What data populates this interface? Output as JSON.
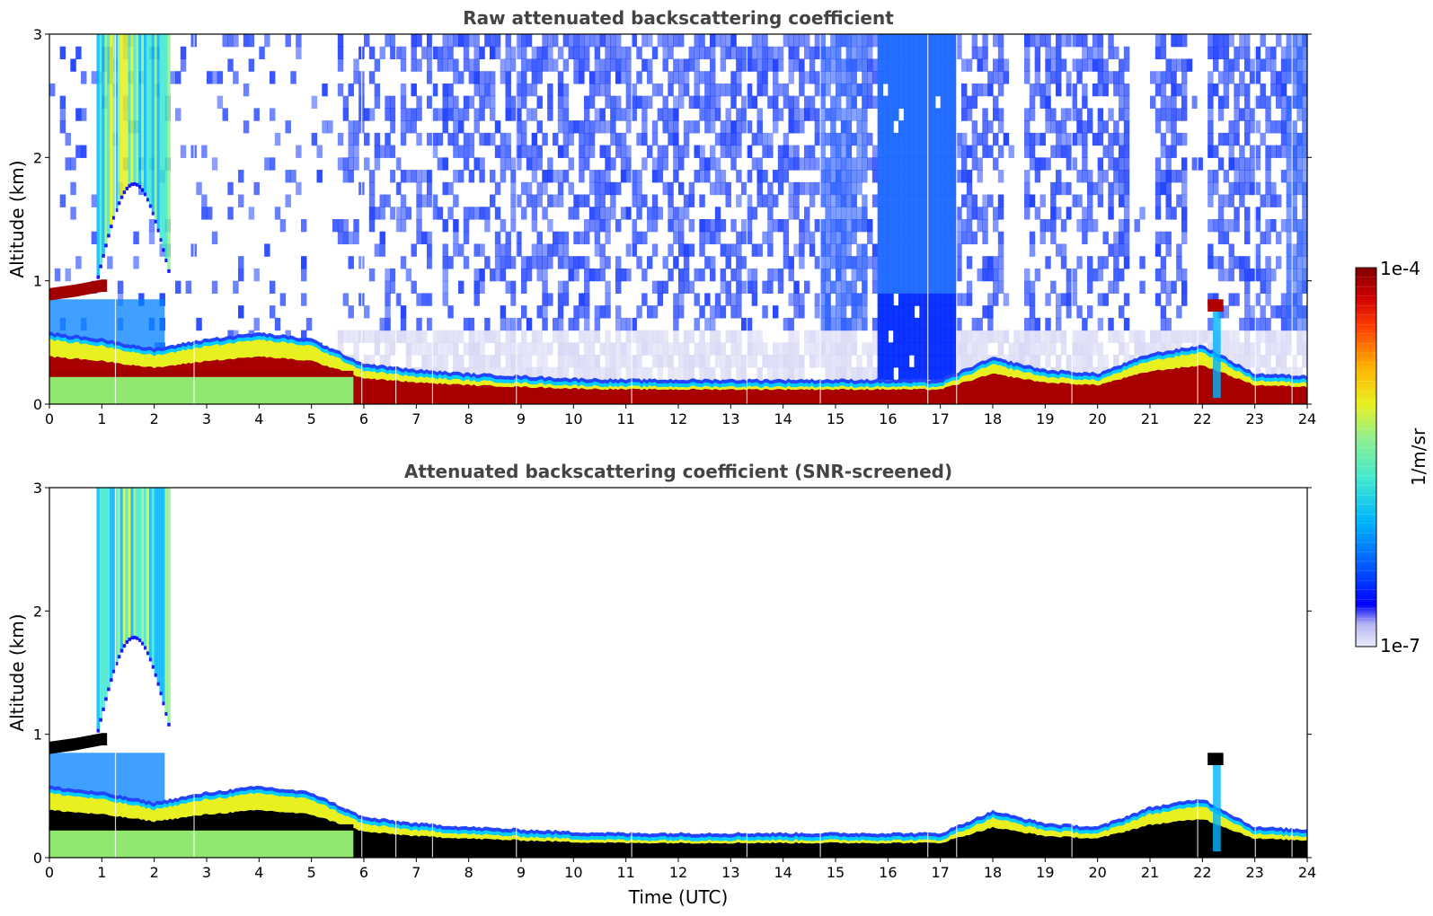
{
  "chart_data": [
    {
      "type": "heatmap",
      "title": "Raw attenuated backscattering coefficient",
      "xlabel": "",
      "ylabel": "Altitude (km)",
      "xlim": [
        0,
        24
      ],
      "ylim": [
        0,
        3
      ],
      "xticks": [
        "0",
        "1",
        "2",
        "3",
        "4",
        "5",
        "6",
        "7",
        "8",
        "9",
        "10",
        "11",
        "12",
        "13",
        "14",
        "15",
        "16",
        "17",
        "18",
        "19",
        "20",
        "21",
        "22",
        "23",
        "24"
      ],
      "yticks": [
        "0",
        "1",
        "2",
        "3"
      ],
      "screened": false,
      "features": [
        {
          "name": "boundary layer aerosol top (km)",
          "x": [
            0,
            1,
            2,
            3,
            4,
            5,
            6,
            7,
            8,
            9,
            10,
            11,
            12,
            13,
            14,
            15,
            16,
            17,
            18,
            19,
            20,
            21,
            22,
            23,
            24
          ],
          "values": [
            0.55,
            0.5,
            0.42,
            0.5,
            0.55,
            0.5,
            0.3,
            0.25,
            0.22,
            0.2,
            0.18,
            0.17,
            0.17,
            0.17,
            0.17,
            0.17,
            0.17,
            0.17,
            0.35,
            0.25,
            0.22,
            0.38,
            0.45,
            0.22,
            0.2
          ]
        },
        {
          "name": "low cloud layer (km)",
          "x": [
            0,
            0.5,
            1,
            1.1
          ],
          "values": [
            0.9,
            0.93,
            0.97,
            0.97
          ]
        },
        {
          "name": "high cloud plume (km)",
          "x_range": [
            0.9,
            2.3
          ],
          "y_range": [
            1.2,
            3.0
          ]
        },
        {
          "name": "strong background noise zone (UTC hours)",
          "x_range": [
            15.8,
            17.3
          ]
        }
      ]
    },
    {
      "type": "heatmap",
      "title": "Attenuated backscattering coefficient (SNR-screened)",
      "xlabel": "Time (UTC)",
      "ylabel": "Altitude (km)",
      "xlim": [
        0,
        24
      ],
      "ylim": [
        0,
        3
      ],
      "xticks": [
        "0",
        "1",
        "2",
        "3",
        "4",
        "5",
        "6",
        "7",
        "8",
        "9",
        "10",
        "11",
        "12",
        "13",
        "14",
        "15",
        "16",
        "17",
        "18",
        "19",
        "20",
        "21",
        "22",
        "23",
        "24"
      ],
      "yticks": [
        "0",
        "1",
        "2",
        "3"
      ],
      "screened": true
    }
  ],
  "colorbar": {
    "max_label": "1e-4",
    "min_label": "1e-7",
    "label": "1/m/sr",
    "colormap": [
      "#ececfb",
      "#b4b4f0",
      "#0000ff",
      "#0060ff",
      "#00b4ff",
      "#40e8d0",
      "#90f090",
      "#e8f020",
      "#ffb000",
      "#ff4000",
      "#d00000",
      "#800000"
    ]
  }
}
